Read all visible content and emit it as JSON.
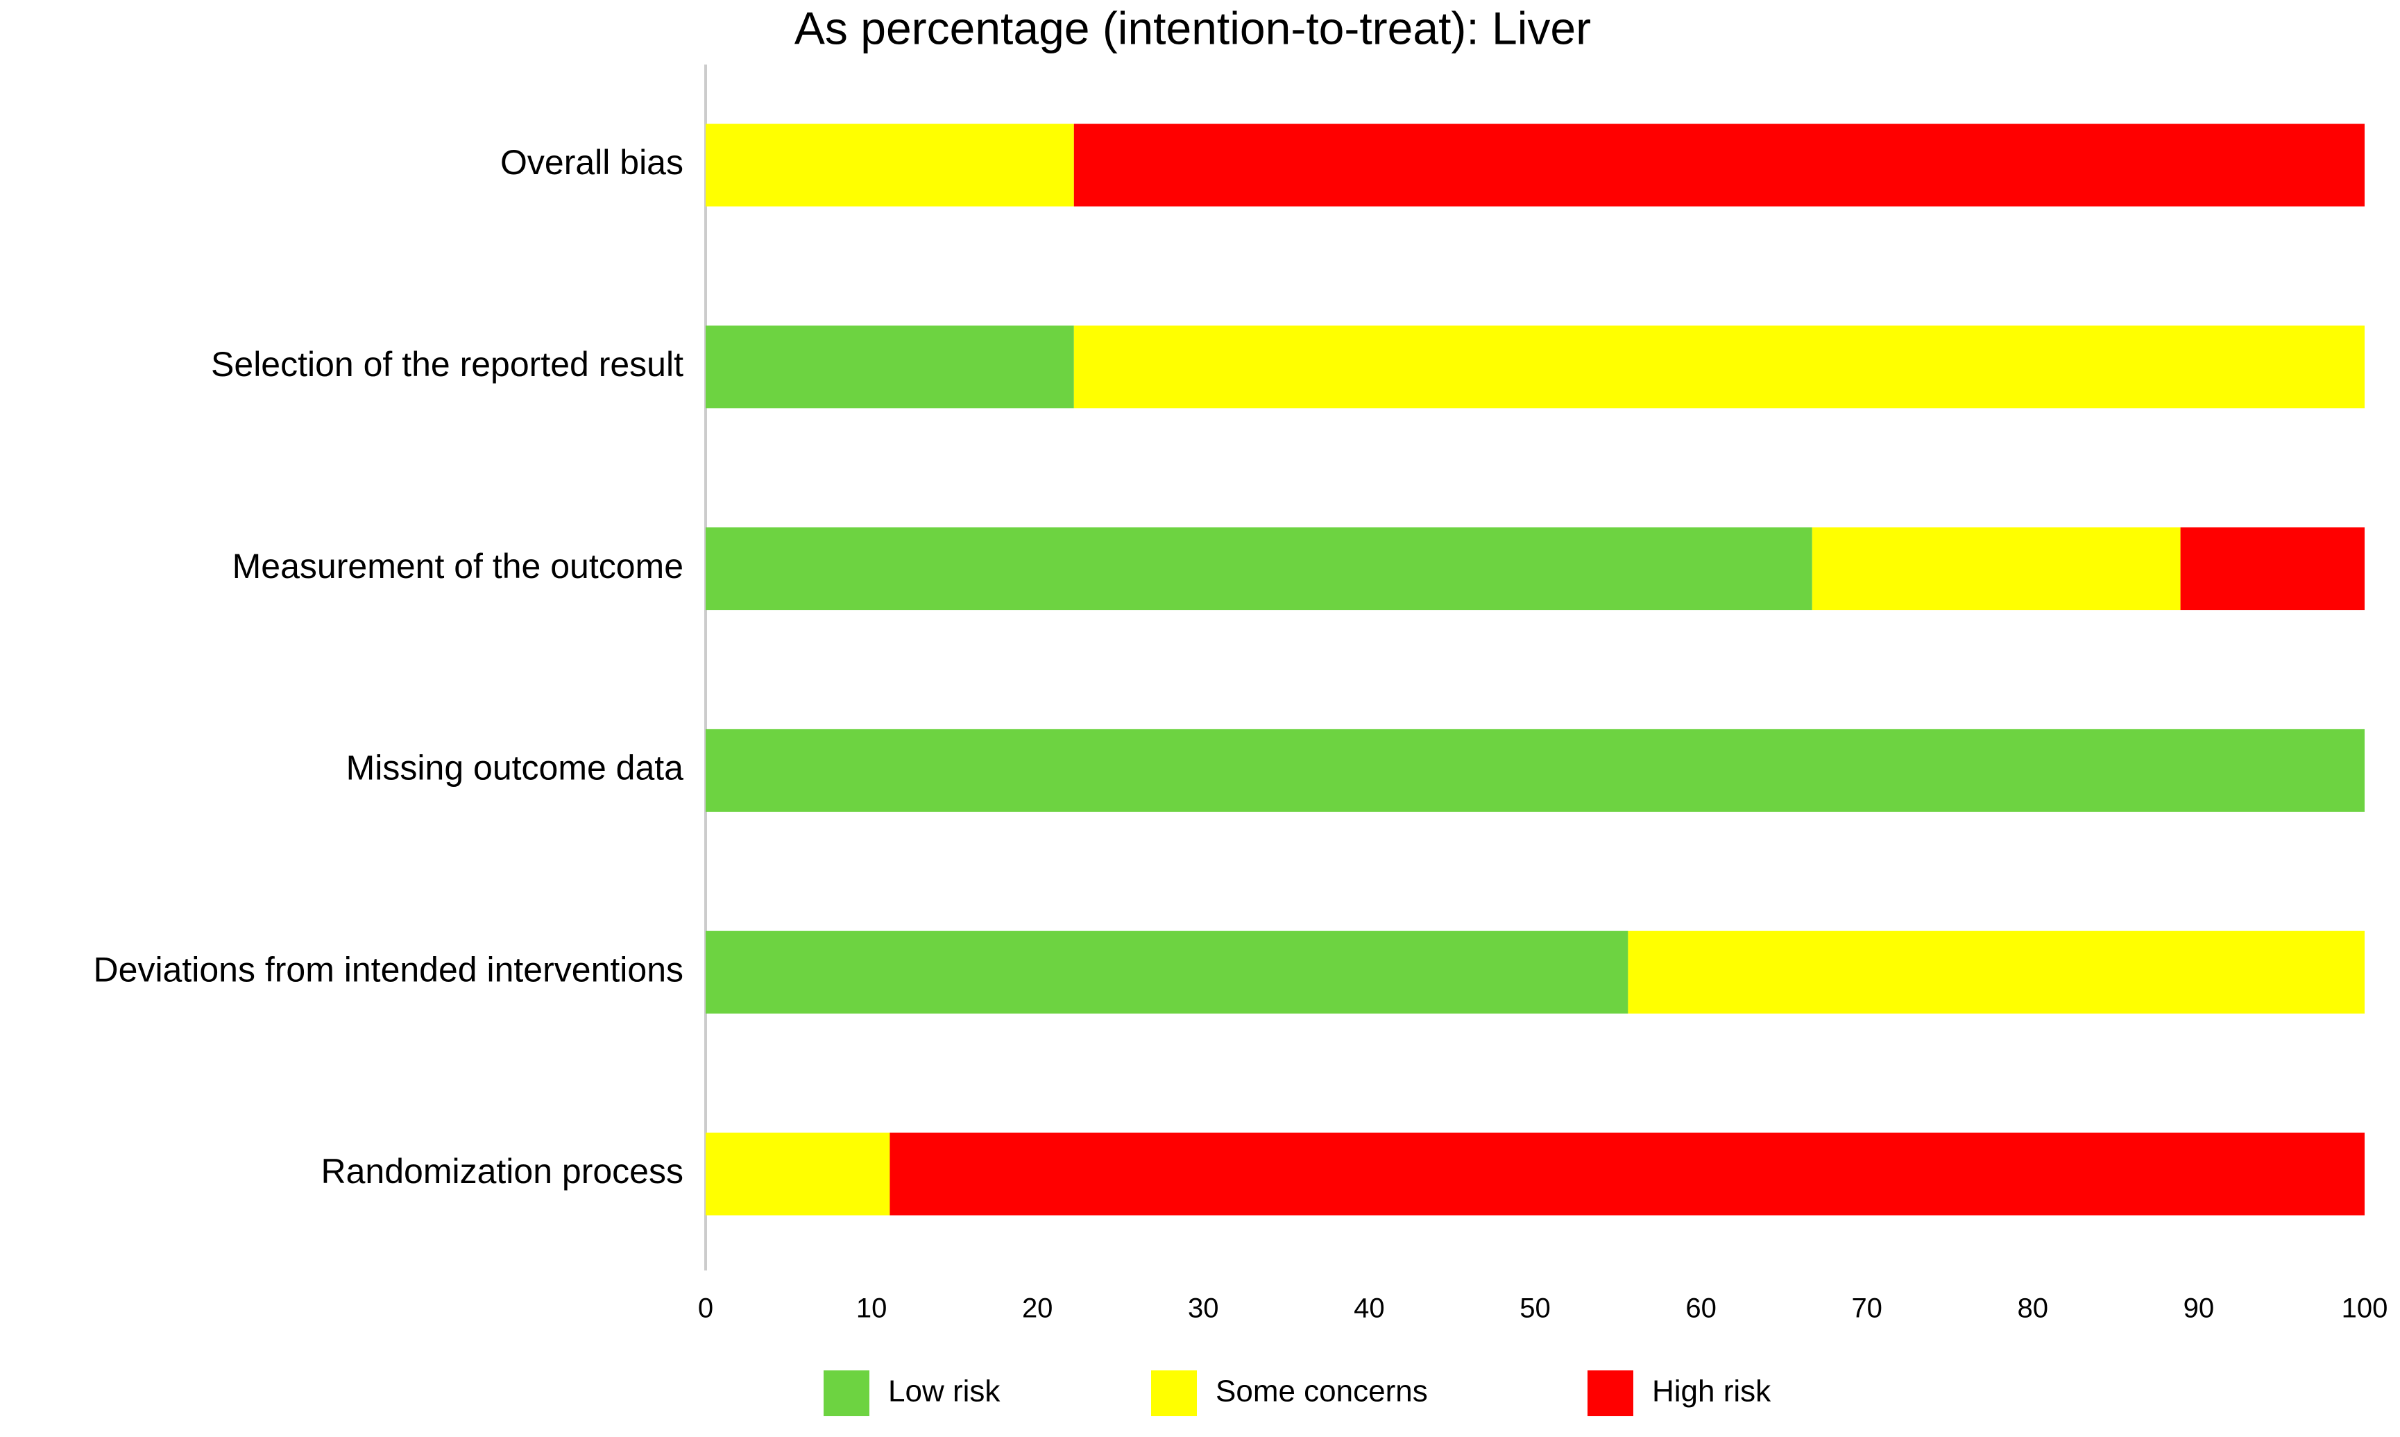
{
  "chart_data": {
    "type": "stacked-bar-horizontal",
    "title": "As percentage (intention-to-treat): Liver",
    "categories": [
      "Overall bias",
      "Selection of the reported result",
      "Measurement of the outcome",
      "Missing outcome data",
      "Deviations from intended interventions",
      "Randomization process"
    ],
    "series": [
      {
        "name": "Low risk",
        "color": "#6dd341",
        "values": [
          0,
          22.2,
          66.7,
          100,
          55.6,
          0
        ]
      },
      {
        "name": "Some concerns",
        "color": "#ffff00",
        "values": [
          22.2,
          77.8,
          22.2,
          0,
          44.4,
          11.1
        ]
      },
      {
        "name": "High risk",
        "color": "#ff0000",
        "values": [
          77.8,
          0,
          11.1,
          0,
          0,
          88.9
        ]
      }
    ],
    "xlim": [
      0,
      100
    ],
    "xticks": [
      0,
      10,
      20,
      30,
      40,
      50,
      60,
      70,
      80,
      90,
      100
    ],
    "legend": "bottom"
  }
}
